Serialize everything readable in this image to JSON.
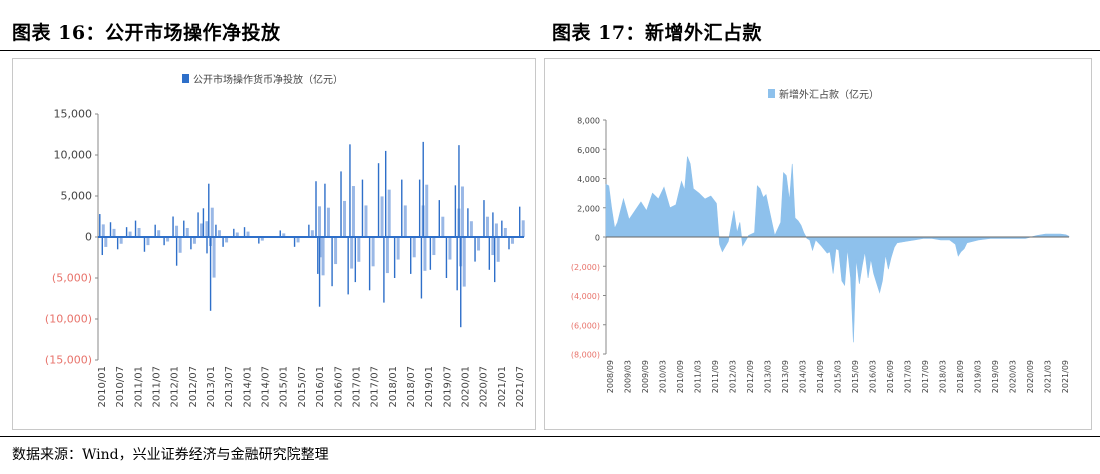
{
  "page": {
    "left_title": "图表 16：公开市场操作净投放",
    "right_title": "图表 17：新增外汇占款",
    "source": "数据来源：Wind，兴业证券经济与金融研究院整理"
  },
  "chart_data": [
    {
      "type": "bar",
      "legend": "公开市场操作货币净投放（亿元）",
      "legend_position": "top-center",
      "series_color": "#2e6fc9",
      "series_color_light": "#9ab8e6",
      "ylim": [
        -15000,
        15000
      ],
      "yticks": [
        15000,
        10000,
        5000,
        0,
        -5000,
        -10000,
        -15000
      ],
      "ytick_labels": [
        "15,000",
        "10,000",
        "5,000",
        "0",
        "(5,000)",
        "(10,000)",
        "(15,000)"
      ],
      "negative_tick_color": "#e8736b",
      "x_labels": [
        "2010/01",
        "2010/07",
        "2011/01",
        "2011/07",
        "2012/01",
        "2012/07",
        "2013/01",
        "2013/07",
        "2014/01",
        "2014/07",
        "2015/01",
        "2015/07",
        "2016/01",
        "2016/07",
        "2017/01",
        "2017/07",
        "2018/01",
        "2018/07",
        "2019/01",
        "2019/07",
        "2020/01",
        "2020/07",
        "2021/01",
        "2021/07"
      ],
      "x_start": 2010.0,
      "x_end": 2021.92,
      "spikes": [
        {
          "x": 2010.05,
          "v": 2800
        },
        {
          "x": 2010.12,
          "v": -2200
        },
        {
          "x": 2010.35,
          "v": 1800
        },
        {
          "x": 2010.55,
          "v": -1500
        },
        {
          "x": 2010.8,
          "v": 1200
        },
        {
          "x": 2011.05,
          "v": 2000
        },
        {
          "x": 2011.3,
          "v": -1800
        },
        {
          "x": 2011.6,
          "v": 1500
        },
        {
          "x": 2011.85,
          "v": -1000
        },
        {
          "x": 2012.1,
          "v": 2500
        },
        {
          "x": 2012.2,
          "v": -3500
        },
        {
          "x": 2012.4,
          "v": 2000
        },
        {
          "x": 2012.6,
          "v": -1500
        },
        {
          "x": 2012.8,
          "v": 3000
        },
        {
          "x": 2012.95,
          "v": 3500
        },
        {
          "x": 2013.05,
          "v": -2000
        },
        {
          "x": 2013.1,
          "v": 6500
        },
        {
          "x": 2013.15,
          "v": -9000
        },
        {
          "x": 2013.3,
          "v": 1500
        },
        {
          "x": 2013.5,
          "v": -1200
        },
        {
          "x": 2013.8,
          "v": 1000
        },
        {
          "x": 2014.1,
          "v": 1200
        },
        {
          "x": 2014.5,
          "v": -800
        },
        {
          "x": 2015.1,
          "v": 800
        },
        {
          "x": 2015.5,
          "v": -1200
        },
        {
          "x": 2015.9,
          "v": 1500
        },
        {
          "x": 2016.1,
          "v": 6800
        },
        {
          "x": 2016.15,
          "v": -4500
        },
        {
          "x": 2016.2,
          "v": -8500
        },
        {
          "x": 2016.35,
          "v": 6500
        },
        {
          "x": 2016.55,
          "v": -6000
        },
        {
          "x": 2016.8,
          "v": 8000
        },
        {
          "x": 2017.0,
          "v": -7000
        },
        {
          "x": 2017.05,
          "v": 11300
        },
        {
          "x": 2017.2,
          "v": -5500
        },
        {
          "x": 2017.4,
          "v": 7000
        },
        {
          "x": 2017.6,
          "v": -6500
        },
        {
          "x": 2017.85,
          "v": 9000
        },
        {
          "x": 2018.0,
          "v": -8000
        },
        {
          "x": 2018.05,
          "v": 10500
        },
        {
          "x": 2018.3,
          "v": -5000
        },
        {
          "x": 2018.5,
          "v": 7000
        },
        {
          "x": 2018.75,
          "v": -4500
        },
        {
          "x": 2019.0,
          "v": 7000
        },
        {
          "x": 2019.05,
          "v": -7500
        },
        {
          "x": 2019.1,
          "v": 11600
        },
        {
          "x": 2019.3,
          "v": -4000
        },
        {
          "x": 2019.55,
          "v": 4500
        },
        {
          "x": 2019.75,
          "v": -5000
        },
        {
          "x": 2020.0,
          "v": 6300
        },
        {
          "x": 2020.05,
          "v": -6500
        },
        {
          "x": 2020.1,
          "v": 11200
        },
        {
          "x": 2020.15,
          "v": -11000
        },
        {
          "x": 2020.35,
          "v": 3500
        },
        {
          "x": 2020.55,
          "v": -3000
        },
        {
          "x": 2020.8,
          "v": 4500
        },
        {
          "x": 2020.95,
          "v": -4000
        },
        {
          "x": 2021.05,
          "v": 3000
        },
        {
          "x": 2021.1,
          "v": -5500
        },
        {
          "x": 2021.3,
          "v": 2000
        },
        {
          "x": 2021.5,
          "v": -1500
        },
        {
          "x": 2021.8,
          "v": 3700
        }
      ]
    },
    {
      "type": "area",
      "legend": "新增外汇占款（亿元）",
      "legend_position": "top-center",
      "series_color": "#8ec1ec",
      "ylim": [
        -8000,
        8000
      ],
      "yticks": [
        8000,
        6000,
        4000,
        2000,
        0,
        -2000,
        -4000,
        -6000,
        -8000
      ],
      "ytick_labels": [
        "8,000",
        "6,000",
        "4,000",
        "2,000",
        "0",
        "(2,000)",
        "(4,000)",
        "(6,000)",
        "(8,000)"
      ],
      "negative_tick_color": "#e8736b",
      "x_labels": [
        "2008/09",
        "2009/03",
        "2009/09",
        "2010/03",
        "2010/09",
        "2011/03",
        "2011/09",
        "2012/03",
        "2012/09",
        "2013/03",
        "2013/09",
        "2014/03",
        "2014/09",
        "2015/03",
        "2015/09",
        "2016/03",
        "2016/09",
        "2017/03",
        "2017/09",
        "2018/03",
        "2018/09",
        "2019/03",
        "2019/09",
        "2020/03",
        "2020/09",
        "2021/03",
        "2021/09"
      ],
      "x_start": 2008.67,
      "x_end": 2021.92,
      "series": [
        {
          "x": 2008.67,
          "v": 3600
        },
        {
          "x": 2008.75,
          "v": 3500
        },
        {
          "x": 2008.83,
          "v": 2000
        },
        {
          "x": 2008.92,
          "v": 600
        },
        {
          "x": 2009.0,
          "v": 1000
        },
        {
          "x": 2009.17,
          "v": 2600
        },
        {
          "x": 2009.33,
          "v": 1200
        },
        {
          "x": 2009.5,
          "v": 1800
        },
        {
          "x": 2009.67,
          "v": 2400
        },
        {
          "x": 2009.83,
          "v": 1800
        },
        {
          "x": 2010.0,
          "v": 3000
        },
        {
          "x": 2010.17,
          "v": 2600
        },
        {
          "x": 2010.33,
          "v": 3400
        },
        {
          "x": 2010.5,
          "v": 2000
        },
        {
          "x": 2010.67,
          "v": 2200
        },
        {
          "x": 2010.83,
          "v": 3800
        },
        {
          "x": 2010.92,
          "v": 3200
        },
        {
          "x": 2011.0,
          "v": 5500
        },
        {
          "x": 2011.08,
          "v": 5000
        },
        {
          "x": 2011.17,
          "v": 3300
        },
        {
          "x": 2011.33,
          "v": 3000
        },
        {
          "x": 2011.5,
          "v": 2600
        },
        {
          "x": 2011.67,
          "v": 2800
        },
        {
          "x": 2011.83,
          "v": 2300
        },
        {
          "x": 2011.92,
          "v": -500
        },
        {
          "x": 2012.0,
          "v": -1000
        },
        {
          "x": 2012.17,
          "v": -300
        },
        {
          "x": 2012.33,
          "v": 1800
        },
        {
          "x": 2012.42,
          "v": 300
        },
        {
          "x": 2012.5,
          "v": 1000
        },
        {
          "x": 2012.58,
          "v": -600
        },
        {
          "x": 2012.75,
          "v": 100
        },
        {
          "x": 2012.92,
          "v": 300
        },
        {
          "x": 2013.0,
          "v": 3500
        },
        {
          "x": 2013.08,
          "v": 3300
        },
        {
          "x": 2013.17,
          "v": 2700
        },
        {
          "x": 2013.25,
          "v": 2900
        },
        {
          "x": 2013.33,
          "v": 2000
        },
        {
          "x": 2013.5,
          "v": 100
        },
        {
          "x": 2013.67,
          "v": 1000
        },
        {
          "x": 2013.75,
          "v": 4400
        },
        {
          "x": 2013.83,
          "v": 4200
        },
        {
          "x": 2013.92,
          "v": 2500
        },
        {
          "x": 2014.0,
          "v": 5000
        },
        {
          "x": 2014.08,
          "v": 1300
        },
        {
          "x": 2014.17,
          "v": 1100
        },
        {
          "x": 2014.25,
          "v": 800
        },
        {
          "x": 2014.33,
          "v": 300
        },
        {
          "x": 2014.42,
          "v": -100
        },
        {
          "x": 2014.5,
          "v": -200
        },
        {
          "x": 2014.58,
          "v": -900
        },
        {
          "x": 2014.67,
          "v": -200
        },
        {
          "x": 2014.83,
          "v": -600
        },
        {
          "x": 2015.0,
          "v": -1100
        },
        {
          "x": 2015.08,
          "v": -1000
        },
        {
          "x": 2015.17,
          "v": -2500
        },
        {
          "x": 2015.25,
          "v": -800
        },
        {
          "x": 2015.33,
          "v": -900
        },
        {
          "x": 2015.42,
          "v": -3000
        },
        {
          "x": 2015.5,
          "v": -3300
        },
        {
          "x": 2015.58,
          "v": -800
        },
        {
          "x": 2015.67,
          "v": -2800
        },
        {
          "x": 2015.75,
          "v": -7200
        },
        {
          "x": 2015.83,
          "v": -1500
        },
        {
          "x": 2015.92,
          "v": -3200
        },
        {
          "x": 2016.0,
          "v": -2000
        },
        {
          "x": 2016.08,
          "v": -1000
        },
        {
          "x": 2016.17,
          "v": -2800
        },
        {
          "x": 2016.25,
          "v": -1500
        },
        {
          "x": 2016.33,
          "v": -2500
        },
        {
          "x": 2016.42,
          "v": -3200
        },
        {
          "x": 2016.5,
          "v": -3800
        },
        {
          "x": 2016.58,
          "v": -3000
        },
        {
          "x": 2016.67,
          "v": -1200
        },
        {
          "x": 2016.75,
          "v": -2200
        },
        {
          "x": 2016.83,
          "v": -1400
        },
        {
          "x": 2016.92,
          "v": -700
        },
        {
          "x": 2017.0,
          "v": -400
        },
        {
          "x": 2017.25,
          "v": -300
        },
        {
          "x": 2017.5,
          "v": -200
        },
        {
          "x": 2017.75,
          "v": -100
        },
        {
          "x": 2018.0,
          "v": -100
        },
        {
          "x": 2018.25,
          "v": -200
        },
        {
          "x": 2018.5,
          "v": -200
        },
        {
          "x": 2018.67,
          "v": -500
        },
        {
          "x": 2018.75,
          "v": -1300
        },
        {
          "x": 2018.83,
          "v": -1000
        },
        {
          "x": 2018.92,
          "v": -800
        },
        {
          "x": 2019.0,
          "v": -400
        },
        {
          "x": 2019.33,
          "v": -200
        },
        {
          "x": 2019.67,
          "v": -100
        },
        {
          "x": 2020.0,
          "v": -100
        },
        {
          "x": 2020.33,
          "v": -100
        },
        {
          "x": 2020.67,
          "v": -100
        },
        {
          "x": 2021.0,
          "v": 100
        },
        {
          "x": 2021.25,
          "v": 200
        },
        {
          "x": 2021.5,
          "v": 200
        },
        {
          "x": 2021.67,
          "v": 200
        },
        {
          "x": 2021.83,
          "v": 150
        },
        {
          "x": 2021.92,
          "v": 50
        }
      ]
    }
  ]
}
